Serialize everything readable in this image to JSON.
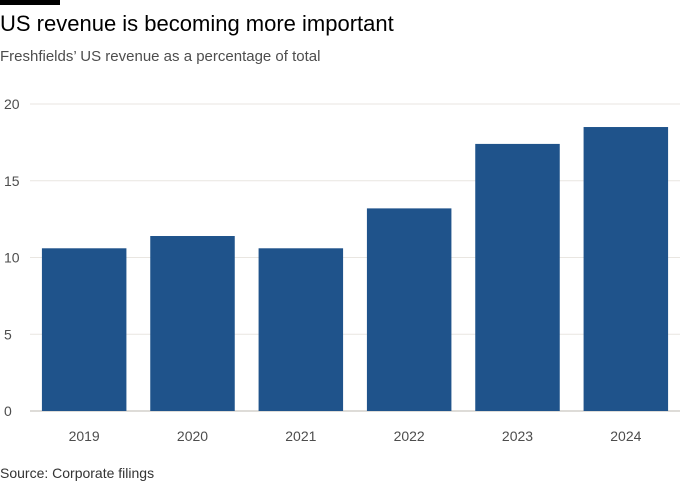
{
  "header": {
    "title": "US revenue is becoming more important",
    "subtitle": "Freshfields’ US revenue as a percentage of total"
  },
  "footer": {
    "source": "Source: Corporate filings"
  },
  "colors": {
    "bar": "#1f538b",
    "grid": "#e9e6e1",
    "axis": "#bdb8b0"
  },
  "chart_data": {
    "type": "bar",
    "title": "US revenue is becoming more important",
    "subtitle": "Freshfields’ US revenue as a percentage of total",
    "xlabel": "",
    "ylabel": "",
    "categories": [
      "2019",
      "2020",
      "2021",
      "2022",
      "2023",
      "2024"
    ],
    "values": [
      10.6,
      11.4,
      10.6,
      13.2,
      17.4,
      18.5
    ],
    "ylim": [
      0,
      20
    ],
    "yticks": [
      0,
      5,
      10,
      15,
      20
    ],
    "grid": true,
    "legend": "none"
  }
}
